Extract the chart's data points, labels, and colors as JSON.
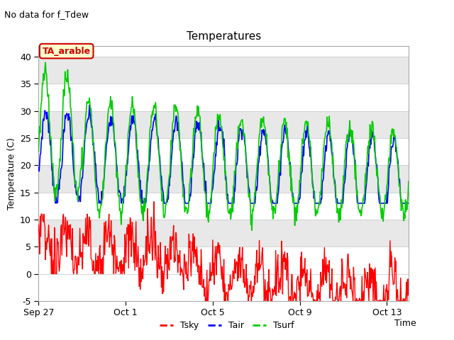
{
  "title": "Temperatures",
  "top_left_text": "No data for f_Tdew",
  "ylabel": "Temperature (C)",
  "xlabel": "Time",
  "legend_label_box": "TA_arable",
  "ylim": [
    -5,
    42
  ],
  "yticks": [
    -5,
    0,
    5,
    10,
    15,
    20,
    25,
    30,
    35,
    40
  ],
  "xtick_positions": [
    0,
    4,
    8,
    12,
    16
  ],
  "xtick_labels": [
    "Sep 27",
    "Oct 1",
    "Oct 5",
    "Oct 9",
    "Oct 13"
  ],
  "line_colors": {
    "Tsky": "#ff0000",
    "Tair": "#0000ff",
    "Tsurf": "#00cc00"
  },
  "bg_color": "#e8e8e8",
  "plot_bg": "#e8e8e8",
  "stripe_color": "#ffffff",
  "legend_box_facecolor": "#ffffcc",
  "legend_box_edgecolor": "#cc0000",
  "font_family": "DejaVu Sans",
  "title_fontsize": 11,
  "label_fontsize": 9,
  "tick_fontsize": 9,
  "xlim": [
    0,
    17
  ],
  "x_days": 17,
  "n_points": 700,
  "random_seed": 7
}
